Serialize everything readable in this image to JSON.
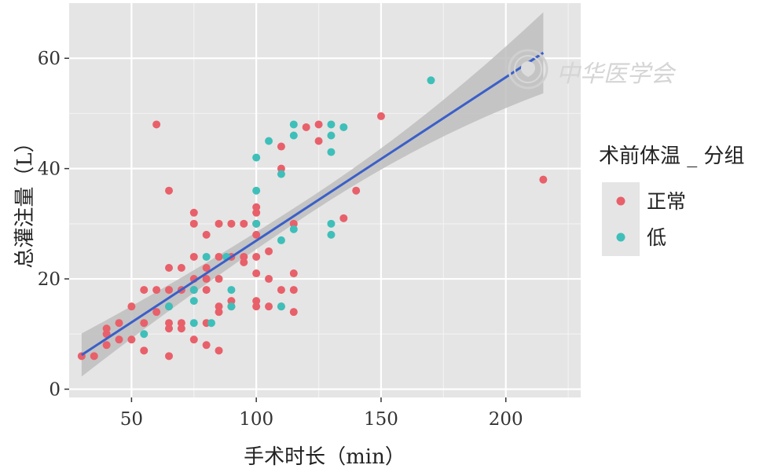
{
  "chart_data": {
    "type": "scatter",
    "xlabel": "手术时长（min）",
    "ylabel": "总灌注量（L）",
    "xlim": [
      25,
      230
    ],
    "ylim": [
      -1.5,
      70
    ],
    "x_ticks": [
      50,
      100,
      150,
      200
    ],
    "y_ticks": [
      0,
      20,
      40,
      60
    ],
    "grid": true,
    "legend_position": "right",
    "legend": {
      "title": "术前体温 _ 分组",
      "entries": [
        {
          "label": "正常",
          "color": "#E8606A"
        },
        {
          "label": "低",
          "color": "#3FBFB9"
        }
      ]
    },
    "series": [
      {
        "name": "正常",
        "color": "#E8606A",
        "points": [
          [
            30,
            6
          ],
          [
            35,
            6
          ],
          [
            40,
            8
          ],
          [
            40,
            10
          ],
          [
            40,
            11
          ],
          [
            45,
            9
          ],
          [
            45,
            12
          ],
          [
            50,
            9
          ],
          [
            50,
            15
          ],
          [
            55,
            7
          ],
          [
            55,
            12
          ],
          [
            55,
            18
          ],
          [
            60,
            14
          ],
          [
            60,
            18
          ],
          [
            60,
            48
          ],
          [
            65,
            6
          ],
          [
            65,
            11
          ],
          [
            65,
            12
          ],
          [
            65,
            15
          ],
          [
            65,
            18
          ],
          [
            65,
            22
          ],
          [
            65,
            36
          ],
          [
            70,
            11
          ],
          [
            70,
            12
          ],
          [
            70,
            18
          ],
          [
            70,
            22
          ],
          [
            75,
            9
          ],
          [
            75,
            18
          ],
          [
            75,
            20
          ],
          [
            75,
            24
          ],
          [
            75,
            30
          ],
          [
            75,
            32
          ],
          [
            80,
            8
          ],
          [
            80,
            12
          ],
          [
            80,
            18
          ],
          [
            80,
            20
          ],
          [
            80,
            22
          ],
          [
            80,
            28
          ],
          [
            85,
            7
          ],
          [
            85,
            14
          ],
          [
            85,
            15
          ],
          [
            85,
            20
          ],
          [
            85,
            24
          ],
          [
            85,
            30
          ],
          [
            90,
            15
          ],
          [
            90,
            16
          ],
          [
            90,
            24
          ],
          [
            90,
            30
          ],
          [
            95,
            23
          ],
          [
            95,
            24
          ],
          [
            95,
            30
          ],
          [
            100,
            15
          ],
          [
            100,
            16
          ],
          [
            100,
            21
          ],
          [
            100,
            24
          ],
          [
            100,
            28
          ],
          [
            100,
            30
          ],
          [
            100,
            32
          ],
          [
            100,
            33
          ],
          [
            105,
            15
          ],
          [
            105,
            20
          ],
          [
            105,
            25
          ],
          [
            110,
            15
          ],
          [
            110,
            18
          ],
          [
            110,
            40
          ],
          [
            110,
            44
          ],
          [
            115,
            14
          ],
          [
            115,
            18
          ],
          [
            115,
            21
          ],
          [
            115,
            30
          ],
          [
            120,
            47.5
          ],
          [
            125,
            45
          ],
          [
            125,
            48
          ],
          [
            135,
            31
          ],
          [
            140,
            36
          ],
          [
            150,
            49.5
          ],
          [
            215,
            38
          ]
        ]
      },
      {
        "name": "低",
        "color": "#3FBFB9",
        "points": [
          [
            55,
            10
          ],
          [
            65,
            15
          ],
          [
            75,
            12
          ],
          [
            75,
            16
          ],
          [
            75,
            18
          ],
          [
            80,
            24
          ],
          [
            82,
            12
          ],
          [
            88,
            24
          ],
          [
            90,
            15
          ],
          [
            90,
            18
          ],
          [
            100,
            30
          ],
          [
            100,
            36
          ],
          [
            100,
            42
          ],
          [
            105,
            45
          ],
          [
            110,
            15
          ],
          [
            110,
            27
          ],
          [
            110,
            39
          ],
          [
            115,
            29
          ],
          [
            115,
            46
          ],
          [
            115,
            48
          ],
          [
            130,
            28
          ],
          [
            130,
            30
          ],
          [
            130,
            43
          ],
          [
            130,
            46
          ],
          [
            130,
            48
          ],
          [
            135,
            47.5
          ],
          [
            170,
            56
          ]
        ]
      }
    ],
    "trend_line": {
      "method": "linear",
      "from": [
        30,
        6.2
      ],
      "to": [
        215,
        61
      ],
      "band_low_start": 2.3,
      "band_high_start": 10.1,
      "band_low_end": 53.8,
      "band_high_end": 68.5,
      "color": "#3A5FC8",
      "band_color": "#BEBEBE"
    }
  },
  "watermark": {
    "text": "中华医学会"
  }
}
